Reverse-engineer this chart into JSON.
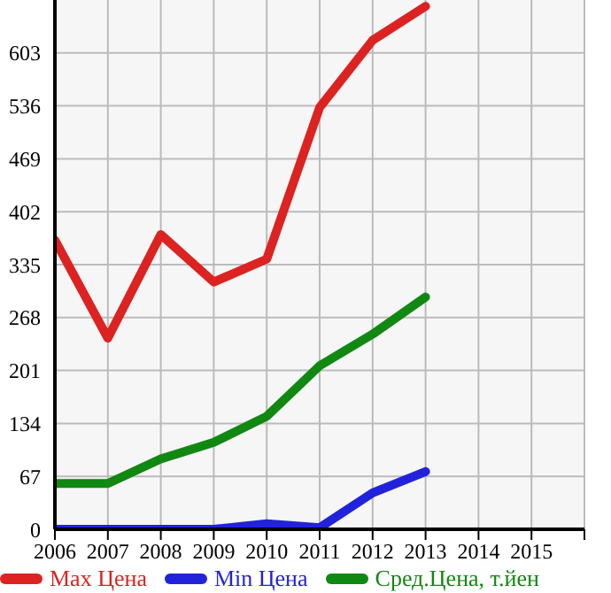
{
  "chart_data": {
    "type": "line",
    "x": [
      2006,
      2007,
      2008,
      2009,
      2010,
      2011,
      2012,
      2013
    ],
    "series": [
      {
        "name": "Max Цена",
        "color": "#dd2222",
        "values": [
          366,
          242,
          373,
          313,
          342,
          534,
          619,
          662
        ]
      },
      {
        "name": "Min Цена",
        "color": "#2222dd",
        "values": [
          0,
          0,
          0,
          0,
          7,
          2,
          46,
          73
        ]
      },
      {
        "name": "Сред.Цена, т.йен",
        "color": "#118811",
        "values": [
          58,
          58,
          89,
          110,
          143,
          207,
          247,
          294
        ]
      }
    ],
    "xlim": [
      2006,
      2016
    ],
    "xticks": [
      2006,
      2007,
      2008,
      2009,
      2010,
      2011,
      2012,
      2013,
      2014,
      2015,
      {
        "value": 2016,
        "label": null
      }
    ],
    "ylim": [
      0,
      670
    ],
    "yticks": [
      0,
      67,
      134,
      201,
      268,
      335,
      402,
      469,
      536,
      603
    ],
    "grid": true,
    "legend": "bottom",
    "line_style": "solid"
  }
}
